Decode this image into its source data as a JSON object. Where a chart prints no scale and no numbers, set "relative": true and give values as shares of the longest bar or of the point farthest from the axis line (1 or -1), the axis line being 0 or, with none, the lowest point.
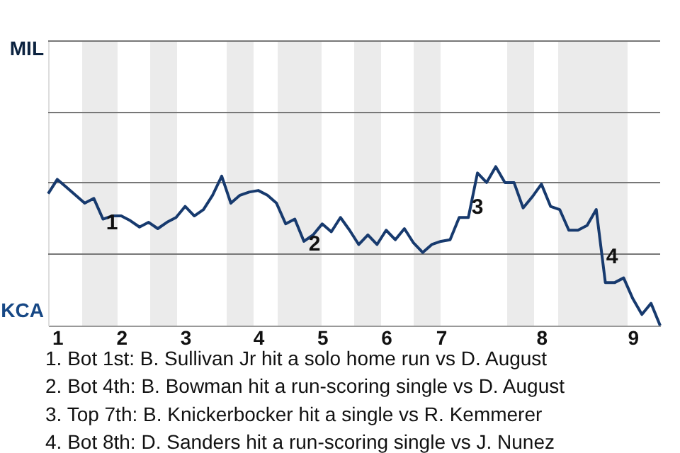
{
  "chart_data": {
    "type": "line",
    "relative": true,
    "categories": [
      null,
      "1",
      null,
      null,
      null,
      null,
      null,
      null,
      "2",
      null,
      null,
      null,
      null,
      null,
      null,
      "3",
      null,
      null,
      null,
      null,
      null,
      null,
      null,
      "4",
      null,
      null,
      null,
      null,
      null,
      null,
      "5",
      null,
      null,
      null,
      null,
      null,
      null,
      "6",
      null,
      null,
      null,
      null,
      null,
      "7",
      null,
      null,
      null,
      null,
      null,
      null,
      null,
      null,
      null,
      null,
      "8",
      null,
      null,
      null,
      null,
      null,
      null,
      null,
      null,
      null,
      "9",
      null,
      null,
      null
    ],
    "series": [
      {
        "color": "#173a6e",
        "values": [
          0.83,
          0.92,
          0.87,
          0.82,
          0.77,
          0.8,
          0.67,
          0.69,
          0.69,
          0.66,
          0.62,
          0.65,
          0.61,
          0.65,
          0.68,
          0.75,
          0.69,
          0.73,
          0.82,
          0.94,
          0.77,
          0.82,
          0.84,
          0.85,
          0.82,
          0.77,
          0.64,
          0.67,
          0.53,
          0.57,
          0.64,
          0.59,
          0.68,
          0.6,
          0.51,
          0.57,
          0.51,
          0.6,
          0.54,
          0.61,
          0.52,
          0.46,
          0.51,
          0.53,
          0.54,
          0.68,
          0.68,
          0.96,
          0.9,
          1,
          0.9,
          0.9,
          0.74,
          0.81,
          0.89,
          0.75,
          0.73,
          0.6,
          0.6,
          0.63,
          0.73,
          0.27,
          0.27,
          0.3,
          0.17,
          0.07,
          0.14,
          0
        ]
      }
    ],
    "ref_lines": [
      {
        "axis": "y",
        "value": 0.45,
        "color": "#777777"
      },
      {
        "axis": "y",
        "value": 0.9,
        "color": "#777777"
      },
      {
        "axis": "y",
        "value": 1.34,
        "color": "#777777"
      },
      {
        "axis": "y",
        "value": 1.79,
        "color": "#777777"
      }
    ],
    "annotations": [
      "MIL",
      "KCA",
      "1",
      "2",
      "3",
      "4",
      "1. Bot 1st: B. Sullivan Jr hit a solo home run vs D. August",
      "2. Bot 4th: B. Bowman hit a run-scoring single vs D. August",
      "3. Top 7th: B. Knickerbocker hit a single vs R. Kemmerer",
      "4. Bot 8th: D. Sanders hit a run-scoring single vs J. Nunez"
    ]
  }
}
